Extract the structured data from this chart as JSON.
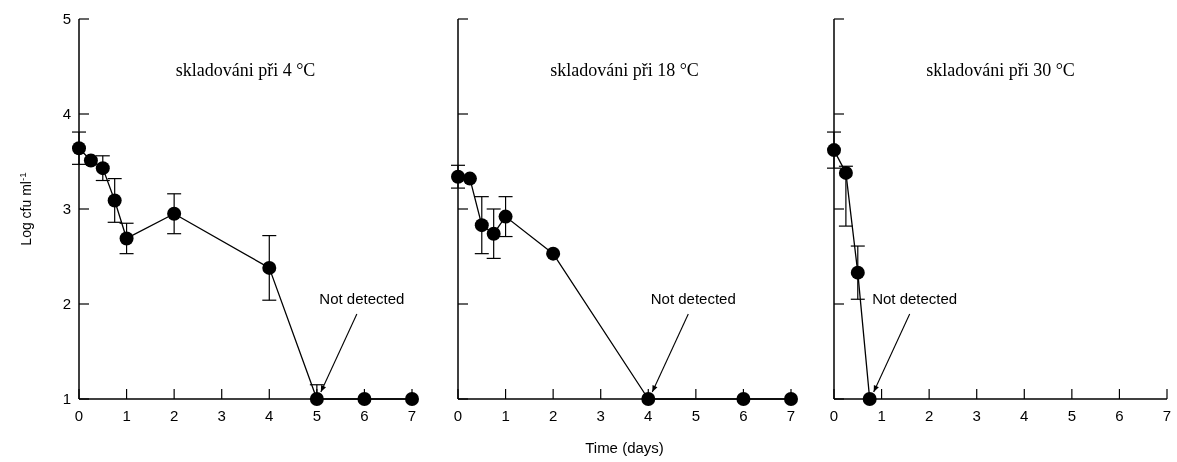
{
  "chart_data": [
    {
      "type": "line",
      "title": "skladováni při 4 °C",
      "ylabel": "Log cfu ml$^{-1}$",
      "xlim": [
        0,
        7
      ],
      "xticks": [
        0,
        1,
        2,
        3,
        4,
        5,
        6,
        7
      ],
      "ylim": [
        1,
        5
      ],
      "yticks": [
        1,
        2,
        3,
        4,
        5
      ],
      "marker": "circle",
      "line_style": "solid",
      "annotations": [
        {
          "text": "Not detected",
          "x": 5,
          "y": 1
        }
      ],
      "series": [
        {
          "color": "#000000",
          "x": [
            0,
            0.25,
            0.5,
            0.75,
            1,
            2,
            4,
            5,
            6,
            7
          ],
          "values": [
            3.64,
            3.51,
            3.43,
            3.09,
            2.69,
            2.95,
            2.38,
            1,
            1,
            1
          ],
          "errors": [
            0.17,
            null,
            0.13,
            0.23,
            0.16,
            0.21,
            0.34,
            [
              1,
              1.15
            ],
            null,
            null
          ]
        }
      ]
    },
    {
      "type": "line",
      "title": "skladováni při 18 °C",
      "xlabel": "Time (days)",
      "xlim": [
        0,
        7
      ],
      "xticks": [
        0,
        1,
        2,
        3,
        4,
        5,
        6,
        7
      ],
      "ylim": [
        1,
        5
      ],
      "yticks": [
        1,
        2,
        3,
        4,
        5
      ],
      "tick_labels": "x",
      "marker": "circle",
      "line_style": "solid",
      "annotations": [
        {
          "text": "Not detected",
          "x": 4,
          "y": 1
        }
      ],
      "series": [
        {
          "color": "#000000",
          "x": [
            0,
            0.25,
            0.5,
            0.75,
            1,
            2,
            4,
            6,
            7
          ],
          "values": [
            3.34,
            3.32,
            2.83,
            2.74,
            2.92,
            2.53,
            1,
            1,
            1
          ],
          "errors": [
            0.12,
            null,
            0.3,
            0.26,
            0.21,
            null,
            null,
            null,
            null
          ]
        }
      ]
    },
    {
      "type": "line",
      "title": "skladováni při 30 °C",
      "xlim": [
        0,
        7
      ],
      "xticks": [
        0,
        1,
        2,
        3,
        4,
        5,
        6,
        7
      ],
      "ylim": [
        1,
        5
      ],
      "yticks": [
        1,
        2,
        3,
        4,
        5
      ],
      "tick_labels": "x",
      "marker": "circle",
      "line_style": "solid",
      "annotations": [
        {
          "text": "Not detected",
          "x": 0.75,
          "y": 1
        }
      ],
      "series": [
        {
          "color": "#000000",
          "x": [
            0,
            0.25,
            0.5,
            0.75
          ],
          "values": [
            3.62,
            3.38,
            2.33,
            1
          ],
          "errors": [
            0.19,
            [
              2.82,
              3.45
            ],
            0.28,
            null
          ]
        }
      ]
    }
  ]
}
